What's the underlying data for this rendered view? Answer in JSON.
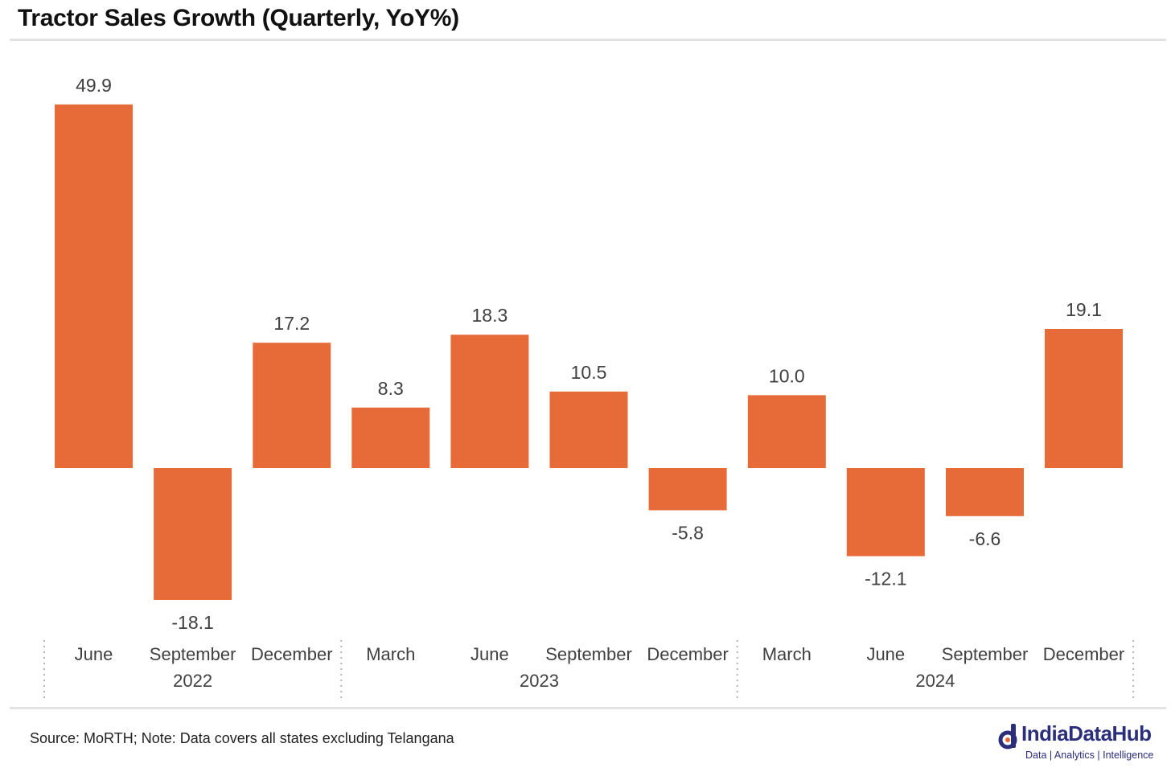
{
  "title": "Tractor Sales Growth (Quarterly, YoY%)",
  "footer": {
    "source": "Source: MoRTH; Note: Data covers all states excluding Telangana",
    "brand_name": "IndiaDataHub",
    "brand_tagline": "Data | Analytics | Intelligence"
  },
  "colors": {
    "bar": "#e76b38",
    "text": "#404040",
    "rule": "#e2e2e2"
  },
  "chart_data": {
    "type": "bar",
    "title": "Tractor Sales Growth (Quarterly, YoY%)",
    "categories": [
      "June",
      "September",
      "December",
      "March",
      "June",
      "September",
      "December",
      "March",
      "June",
      "September",
      "December"
    ],
    "groups": [
      {
        "label": "2022",
        "count": 3
      },
      {
        "label": "2023",
        "count": 4
      },
      {
        "label": "2024",
        "count": 4
      }
    ],
    "values": [
      49.9,
      -18.1,
      17.2,
      8.3,
      18.3,
      10.5,
      -5.8,
      10.0,
      -12.1,
      -6.6,
      19.1
    ],
    "value_labels": [
      "49.9",
      "-18.1",
      "17.2",
      "8.3",
      "18.3",
      "10.5",
      "-5.8",
      "10.0",
      "-12.1",
      "-6.6",
      "19.1"
    ],
    "xlabel": "",
    "ylabel": "",
    "ylim": [
      -18.1,
      49.9
    ],
    "grid": false,
    "legend": "none"
  }
}
